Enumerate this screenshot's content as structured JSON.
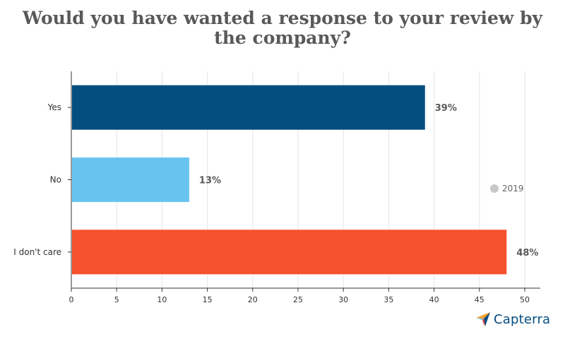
{
  "title_lines": [
    "Would you have wanted a response to your review by",
    "the company?"
  ],
  "legend": {
    "label": "2019",
    "color": "#c8c8c8"
  },
  "brand": {
    "name": "Capterra",
    "color": "#044d80"
  },
  "chart_data": {
    "type": "bar",
    "orientation": "horizontal",
    "title": "Would you have wanted a response to your review by the company?",
    "categories": [
      "Yes",
      "No",
      "I don't care"
    ],
    "values": [
      39,
      13,
      48
    ],
    "data_labels": [
      "39%",
      "13%",
      "48%"
    ],
    "colors": [
      "#044d80",
      "#68c3f0",
      "#f5512d"
    ],
    "series": [
      {
        "name": "2019",
        "values": [
          39,
          13,
          48
        ]
      }
    ],
    "xlim": [
      0,
      50
    ],
    "xticks": [
      0,
      5,
      10,
      15,
      20,
      25,
      30,
      35,
      40,
      45,
      50
    ],
    "grid": "vertical",
    "legend_position": "right"
  }
}
